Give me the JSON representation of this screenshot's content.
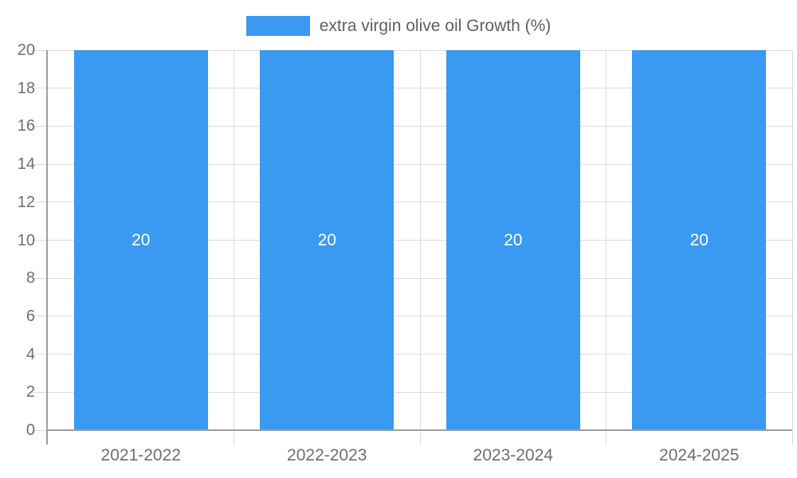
{
  "chart_data": {
    "type": "bar",
    "legend": {
      "label": "extra virgin olive oil Growth (%)",
      "position": "top"
    },
    "categories": [
      "2021-2022",
      "2022-2023",
      "2023-2024",
      "2024-2025"
    ],
    "series": [
      {
        "name": "extra virgin olive oil Growth (%)",
        "values": [
          20,
          20,
          20,
          20
        ]
      }
    ],
    "bar_value_labels": [
      "20",
      "20",
      "20",
      "20"
    ],
    "ylim": [
      0,
      20
    ],
    "yticks": [
      "0",
      "2",
      "4",
      "6",
      "8",
      "10",
      "12",
      "14",
      "16",
      "18",
      "20"
    ],
    "grid": true,
    "colors": {
      "bar": "#3A99F0",
      "axis_line": "#9E9E9E",
      "grid_line": "#DCDCDC",
      "tick_label": "#6E6E6E",
      "legend_text": "#5F5F5F",
      "bar_value_label": "#FFFFFF",
      "background": "#FFFFFF"
    }
  }
}
